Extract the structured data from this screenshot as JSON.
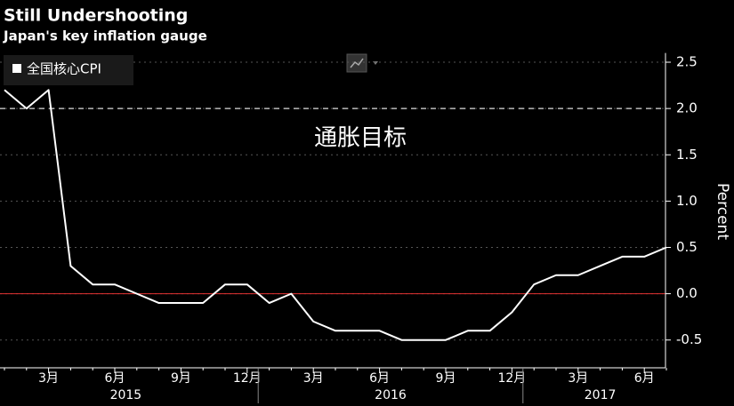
{
  "chart_data": {
    "type": "line",
    "title": "Still Undershooting",
    "subtitle": "Japan's key inflation gauge",
    "y_label": "Percent",
    "annotation": "通胀目标",
    "target_line": 2,
    "categories": [
      null,
      null,
      "3月",
      null,
      null,
      "6月",
      null,
      null,
      "9月",
      null,
      null,
      "12月",
      null,
      null,
      "3月",
      null,
      null,
      "6月",
      null,
      null,
      "9月",
      null,
      null,
      "12月",
      null,
      null,
      "3月",
      null,
      null,
      "6月",
      null
    ],
    "years": [
      "2015",
      "2016",
      "2017"
    ],
    "series": [
      {
        "name": "全国核心CPI",
        "color": "#ffffff",
        "values": [
          2.2,
          2.0,
          2.2,
          0.3,
          0.1,
          0.1,
          0.0,
          -0.1,
          -0.1,
          -0.1,
          0.1,
          0.1,
          -0.1,
          0.0,
          -0.3,
          -0.4,
          -0.4,
          -0.4,
          -0.5,
          -0.5,
          -0.5,
          -0.4,
          -0.4,
          -0.2,
          0.1,
          0.2,
          0.2,
          0.3,
          0.4,
          0.4,
          0.5
        ]
      }
    ],
    "ylim": [
      -0.8,
      2.6
    ],
    "yticks": [
      2.5,
      {
        "value": 2,
        "label": "2.0"
      },
      1.5,
      {
        "value": 1,
        "label": "1.0"
      },
      0.5,
      {
        "value": 0,
        "label": "0.0"
      },
      -0.5
    ],
    "grid": true,
    "legend": "top-left"
  }
}
